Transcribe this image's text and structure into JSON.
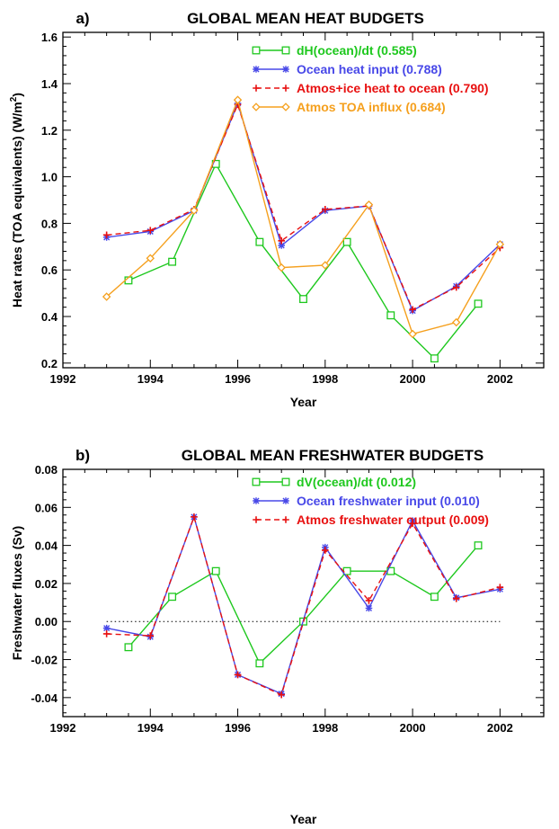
{
  "chart_data": [
    {
      "type": "line",
      "panel": "a)",
      "title": "GLOBAL MEAN HEAT BUDGETS",
      "xlabel": "Year",
      "ylabel": "Heat rates (TOA equivalents) (W/m",
      "ylabel_sup": "2",
      "ylabel_end": ")",
      "xlim": [
        1992,
        2003
      ],
      "ylim": [
        0.18,
        1.62
      ],
      "xticks": [
        1992,
        1994,
        1996,
        1998,
        2000,
        2002
      ],
      "yticks": [
        0.2,
        0.4,
        0.6,
        0.8,
        1.0,
        1.2,
        1.4,
        1.6
      ],
      "ytick_labels": [
        "0.2",
        "0.4",
        "0.6",
        "0.8",
        "1.0",
        "1.2",
        "1.4",
        "1.6"
      ],
      "legend_position": "top-right",
      "series": [
        {
          "name": "dH(ocean)/dt (0.585)",
          "color": "#1ec81e",
          "marker": "square",
          "dash": "solid",
          "x": [
            1993.5,
            1994.5,
            1995.5,
            1996.5,
            1997.5,
            1998.5,
            1999.5,
            2000.5,
            2001.5
          ],
          "y": [
            0.555,
            0.635,
            1.055,
            0.72,
            0.475,
            0.72,
            0.405,
            0.22,
            0.455
          ]
        },
        {
          "name": "Ocean heat input (0.788)",
          "color": "#4848e8",
          "marker": "asterisk",
          "dash": "solid",
          "x": [
            1993,
            1994,
            1995,
            1996,
            1997,
            1998,
            1999,
            2000,
            2001,
            2002
          ],
          "y": [
            0.74,
            0.765,
            0.855,
            1.315,
            0.705,
            0.855,
            0.875,
            0.425,
            0.53,
            0.71
          ]
        },
        {
          "name": "Atmos+ice heat to ocean (0.790)",
          "color": "#e81010",
          "marker": "plus",
          "dash": "dashed",
          "x": [
            1993,
            1994,
            1995,
            1996,
            1997,
            1998,
            1999,
            2000,
            2001,
            2002
          ],
          "y": [
            0.75,
            0.77,
            0.86,
            1.31,
            0.725,
            0.86,
            0.875,
            0.43,
            0.525,
            0.695
          ]
        },
        {
          "name": "Atmos TOA influx (0.684)",
          "color": "#f5a01e",
          "marker": "diamond",
          "dash": "solid",
          "x": [
            1993,
            1994,
            1995,
            1996,
            1997,
            1998,
            1999,
            2000,
            2001,
            2002
          ],
          "y": [
            0.485,
            0.65,
            0.855,
            1.33,
            0.61,
            0.62,
            0.88,
            0.325,
            0.375,
            0.71
          ]
        }
      ]
    },
    {
      "type": "line",
      "panel": "b)",
      "title": "GLOBAL MEAN FRESHWATER BUDGETS",
      "xlabel": "Year",
      "ylabel": "Freshwater fluxes (Sv)",
      "xlim": [
        1992,
        2003
      ],
      "ylim": [
        -0.05,
        0.08
      ],
      "xticks": [
        1992,
        1994,
        1996,
        1998,
        2000,
        2002
      ],
      "yticks": [
        -0.04,
        -0.02,
        0.0,
        0.02,
        0.04,
        0.06,
        0.08
      ],
      "ytick_labels": [
        "-0.04",
        "-0.02",
        "0.00",
        "0.02",
        "0.04",
        "0.06",
        "0.08"
      ],
      "zero_line": true,
      "legend_position": "top-right",
      "series": [
        {
          "name": "dV(ocean)/dt (0.012)",
          "color": "#1ec81e",
          "marker": "square",
          "dash": "solid",
          "x": [
            1993.5,
            1994.5,
            1995.5,
            1996.5,
            1997.5,
            1998.5,
            1999.5,
            2000.5,
            2001.5
          ],
          "y": [
            -0.0135,
            0.013,
            0.0265,
            -0.022,
            0.0,
            0.0265,
            0.0265,
            0.013,
            0.04
          ]
        },
        {
          "name": "Ocean freshwater input (0.010)",
          "color": "#4848e8",
          "marker": "asterisk",
          "dash": "solid",
          "x": [
            1993,
            1994,
            1995,
            1996,
            1997,
            1998,
            1999,
            2000,
            2001,
            2002
          ],
          "y": [
            -0.0035,
            -0.008,
            0.055,
            -0.028,
            -0.038,
            0.039,
            0.007,
            0.053,
            0.0125,
            0.017
          ]
        },
        {
          "name": "Atmos freshwater output (0.009)",
          "color": "#e81010",
          "marker": "plus",
          "dash": "dashed",
          "x": [
            1993,
            1994,
            1995,
            1996,
            1997,
            1998,
            1999,
            2000,
            2001,
            2002
          ],
          "y": [
            -0.0065,
            -0.0075,
            0.055,
            -0.028,
            -0.0385,
            0.0375,
            0.011,
            0.0515,
            0.012,
            0.018
          ]
        }
      ]
    }
  ]
}
